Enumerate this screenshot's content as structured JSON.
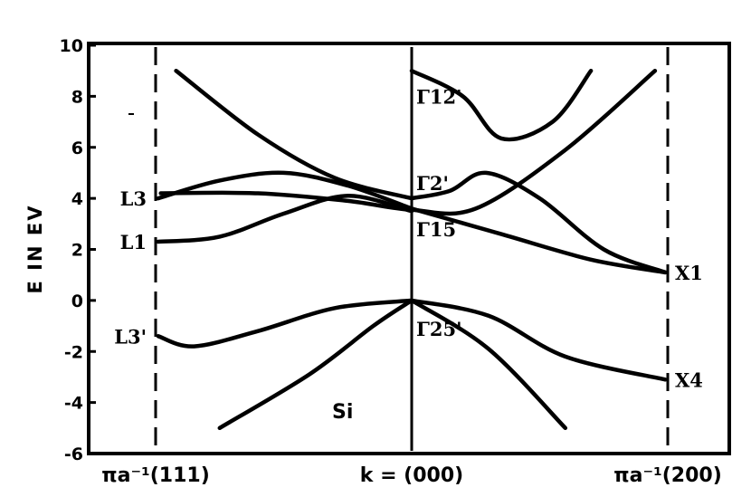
{
  "chart_data": {
    "type": "line",
    "title": "",
    "ylabel": "E IN EV",
    "xlabel": "k = (000)",
    "xticks": [
      "πa⁻¹(111)",
      "k = (000)",
      "πa⁻¹(200)"
    ],
    "x_range": [
      -1,
      1
    ],
    "ylim": [
      -6,
      10
    ],
    "yticks": [
      "10",
      "8",
      "6",
      "4",
      "2",
      "0",
      "-2",
      "-4",
      "-6"
    ],
    "grid": false,
    "annotation": "Si",
    "point_labels": [
      {
        "text": "L3",
        "x": -1,
        "y": 4.0
      },
      {
        "text": "L1",
        "x": -1,
        "y": 2.3
      },
      {
        "text": "L3'",
        "x": -1,
        "y": -1.4
      },
      {
        "text": "Γ12'",
        "x": 0,
        "y": 8.0
      },
      {
        "text": "Γ2'",
        "x": 0,
        "y": 4.6
      },
      {
        "text": "Γ15",
        "x": 0,
        "y": 2.8
      },
      {
        "text": "Γ25'",
        "x": 0,
        "y": -1.1
      },
      {
        "text": "X1",
        "x": 1,
        "y": 1.1
      },
      {
        "text": "X4",
        "x": 1,
        "y": -3.1
      }
    ],
    "series": [
      {
        "x": [
          -0.99,
          -0.75,
          -0.5,
          -0.25,
          0.0
        ],
        "y": [
          4.0,
          4.7,
          5.0,
          4.5,
          3.6
        ]
      },
      {
        "x": [
          -0.99,
          -0.75,
          -0.5,
          -0.25,
          0.0
        ],
        "y": [
          2.3,
          2.5,
          3.4,
          4.1,
          3.5
        ]
      },
      {
        "x": [
          -0.99,
          -0.85,
          -0.6,
          -0.3,
          0.0
        ],
        "y": [
          -1.4,
          -1.8,
          -1.2,
          -0.3,
          0.0
        ]
      },
      {
        "x": [
          -0.98,
          -0.6,
          -0.25,
          0.0,
          0.25,
          0.6,
          0.95
        ],
        "y": [
          4.2,
          4.2,
          3.9,
          3.55,
          3.6,
          5.9,
          9.0
        ]
      },
      {
        "x": [
          -0.92,
          -0.6,
          -0.3,
          0.0
        ],
        "y": [
          9.0,
          6.5,
          4.8,
          4.0
        ]
      },
      {
        "x": [
          -0.75,
          -0.4,
          -0.15,
          0.0
        ],
        "y": [
          -5.0,
          -2.9,
          -1.0,
          0.0
        ]
      },
      {
        "x": [
          0.0,
          0.2,
          0.35,
          0.55,
          0.7
        ],
        "y": [
          9.0,
          8.0,
          6.35,
          7.0,
          9.0
        ]
      },
      {
        "x": [
          0.0,
          0.15,
          0.29,
          0.5,
          0.75,
          0.99
        ],
        "y": [
          4.0,
          4.3,
          5.0,
          4.0,
          2.0,
          1.1
        ]
      },
      {
        "x": [
          0.0,
          0.35,
          0.7,
          0.99
        ],
        "y": [
          3.6,
          2.6,
          1.6,
          1.1
        ]
      },
      {
        "x": [
          0.0,
          0.3,
          0.6,
          0.99
        ],
        "y": [
          0.0,
          -0.6,
          -2.2,
          -3.1
        ]
      },
      {
        "x": [
          0.0,
          0.3,
          0.6
        ],
        "y": [
          0.0,
          -1.9,
          -5.0
        ]
      }
    ]
  }
}
